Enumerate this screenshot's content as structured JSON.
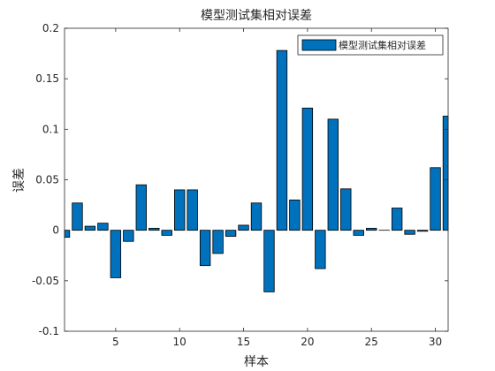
{
  "chart_data": {
    "type": "bar",
    "title": "模型测试集相对误差",
    "xlabel": "样本",
    "ylabel": "误差",
    "legend": {
      "label": "模型测试集相对误差",
      "placement": "top-right"
    },
    "bar_color": "#0072BD",
    "edge_color": "#000000",
    "xlim": [
      1,
      31
    ],
    "ylim": [
      -0.1,
      0.2
    ],
    "xticks": [
      5,
      10,
      15,
      20,
      25,
      30
    ],
    "yticks": [
      -0.1,
      -0.05,
      0,
      0.05,
      0.1,
      0.15,
      0.2
    ],
    "ytick_labels": [
      "-0.1",
      "-0.05",
      "0",
      "0.05",
      "0.1",
      "0.15",
      "0.2"
    ],
    "grid": false,
    "x": [
      1,
      2,
      3,
      4,
      5,
      6,
      7,
      8,
      9,
      10,
      11,
      12,
      13,
      14,
      15,
      16,
      17,
      18,
      19,
      20,
      21,
      22,
      23,
      24,
      25,
      26,
      27,
      28,
      29,
      30,
      31
    ],
    "values": [
      -0.007,
      0.027,
      0.004,
      0.007,
      -0.047,
      -0.011,
      0.045,
      0.002,
      -0.005,
      0.04,
      0.04,
      -0.035,
      -0.023,
      -0.006,
      0.005,
      0.027,
      -0.061,
      0.178,
      0.03,
      0.121,
      -0.038,
      0.11,
      0.041,
      -0.005,
      0.002,
      0.0,
      0.022,
      -0.004,
      -0.001,
      0.062,
      0.113
    ]
  }
}
